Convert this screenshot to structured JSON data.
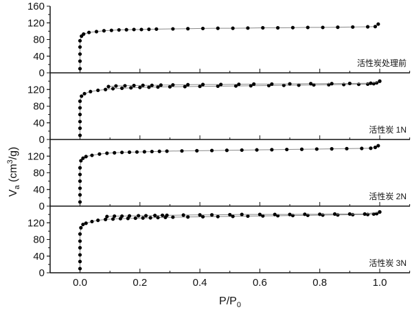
{
  "chart_data": {
    "type": "scatter",
    "xlabel": "P/P",
    "xlabel_sub": "0",
    "ylabel": "V",
    "ylabel_sub": "a",
    "ylabel_unit_pre": " (cm",
    "ylabel_sup": "3",
    "ylabel_unit_post": "/g)",
    "xlim": [
      -0.1,
      1.1
    ],
    "x_ticks": [
      "0.0",
      "0.2",
      "0.4",
      "0.6",
      "0.8",
      "1.0"
    ],
    "x_tick_values": [
      0,
      0.2,
      0.4,
      0.6,
      0.8,
      1.0
    ],
    "grid": false,
    "marker_color": "#000000",
    "line_color": "#888888",
    "panels": [
      {
        "label": "活性炭处理前",
        "ylim": [
          0,
          160
        ],
        "y_ticks": [
          "0",
          "40",
          "80",
          "120",
          "160"
        ],
        "y_tick_values": [
          0,
          40,
          80,
          120,
          160
        ],
        "series": [
          {
            "x": [
              0,
              0,
              0,
              0,
              0,
              0.005,
              0.012,
              0.03,
              0.055,
              0.08,
              0.105,
              0.13,
              0.155,
              0.18,
              0.205,
              0.23,
              0.255,
              0.31,
              0.36,
              0.41,
              0.46,
              0.51,
              0.56,
              0.61,
              0.66,
              0.71,
              0.76,
              0.81,
              0.86,
              0.91,
              0.96,
              0.985,
              0.995
            ],
            "y": [
              10,
              28,
              45,
              62,
              77,
              88,
              93,
              97,
              99,
              101,
              102,
              103,
              103.5,
              104,
              104,
              104.5,
              105,
              105.5,
              106,
              106.5,
              107,
              107,
              107.5,
              108,
              108,
              108.5,
              109,
              109,
              109.5,
              110,
              110.5,
              111,
              117
            ]
          }
        ]
      },
      {
        "label": "活性炭 1N",
        "ylim": [
          0,
          160
        ],
        "y_ticks": [
          "0",
          "40",
          "80",
          "120"
        ],
        "y_tick_values": [
          0,
          40,
          80,
          120
        ],
        "series": [
          {
            "x": [
              0,
              0,
              0,
              0,
              0,
              0,
              0.005,
              0.015,
              0.035,
              0.06,
              0.085,
              0.11,
              0.14,
              0.17,
              0.2,
              0.23,
              0.26,
              0.3,
              0.35,
              0.4,
              0.46,
              0.52,
              0.57,
              0.63,
              0.68,
              0.73,
              0.78,
              0.83,
              0.88,
              0.93,
              0.96,
              0.98,
              0.99,
              1.0
            ],
            "y": [
              10,
              27,
              43,
              60,
              76,
              92,
              104,
              110,
              115,
              118,
              120,
              122,
              123,
              124,
              125,
              125.5,
              126,
              126.5,
              127,
              127.5,
              128,
              128.5,
              129,
              129.5,
              130,
              130.5,
              131,
              131.5,
              132,
              132.5,
              133,
              134,
              136,
              140
            ]
          },
          {
            "x": [
              1.0,
              0.97,
              0.9,
              0.84,
              0.77,
              0.7,
              0.64,
              0.58,
              0.53,
              0.47,
              0.41,
              0.36,
              0.31,
              0.27,
              0.24,
              0.21,
              0.18,
              0.15,
              0.12,
              0.095
            ],
            "y": [
              140,
              135,
              134.5,
              134,
              134,
              133.5,
              133,
              133,
              132.5,
              132,
              132,
              131.5,
              131,
              130.5,
              130,
              130,
              129.5,
              129,
              128.5,
              127
            ]
          }
        ]
      },
      {
        "label": "活性炭 2N",
        "ylim": [
          0,
          160
        ],
        "y_ticks": [
          "0",
          "40",
          "80",
          "120"
        ],
        "y_tick_values": [
          0,
          40,
          80,
          120
        ],
        "series": [
          {
            "x": [
              0,
              0,
              0,
              0,
              0,
              0,
              0.003,
              0.01,
              0.02,
              0.04,
              0.065,
              0.09,
              0.115,
              0.14,
              0.165,
              0.19,
              0.215,
              0.24,
              0.265,
              0.29,
              0.34,
              0.39,
              0.44,
              0.49,
              0.54,
              0.59,
              0.64,
              0.69,
              0.74,
              0.79,
              0.84,
              0.89,
              0.94,
              0.97,
              0.985,
              0.995
            ],
            "y": [
              10,
              27,
              43,
              60,
              76,
              92,
              109,
              115,
              119,
              122,
              125,
              127,
              128,
              129,
              129.5,
              130,
              130.5,
              131,
              131.5,
              132,
              132.5,
              133,
              133.5,
              134,
              134.5,
              135,
              135.5,
              136,
              136.5,
              137,
              137.5,
              138,
              138.5,
              139,
              141,
              145
            ]
          }
        ]
      },
      {
        "label": "活性炭 3N",
        "ylim": [
          0,
          160
        ],
        "y_ticks": [
          "0",
          "40",
          "80",
          "120"
        ],
        "y_tick_values": [
          0,
          40,
          80,
          120
        ],
        "series": [
          {
            "x": [
              0,
              0,
              0,
              0,
              0,
              0,
              0.003,
              0.01,
              0.02,
              0.04,
              0.06,
              0.085,
              0.11,
              0.135,
              0.16,
              0.185,
              0.21,
              0.235,
              0.26,
              0.285,
              0.31,
              0.36,
              0.41,
              0.46,
              0.51,
              0.56,
              0.61,
              0.66,
              0.71,
              0.76,
              0.81,
              0.86,
              0.91,
              0.96,
              0.98,
              0.99,
              1.0
            ],
            "y": [
              10,
              27,
              43,
              60,
              76,
              93,
              108,
              116,
              119,
              123,
              126,
              128,
              129,
              130,
              130.5,
              131,
              131.5,
              132,
              132.5,
              133,
              133.5,
              134,
              134.5,
              135,
              135.5,
              136,
              136.5,
              137,
              137.5,
              138,
              138.5,
              139,
              139.5,
              140,
              141,
              142,
              146
            ]
          },
          {
            "x": [
              1.0,
              0.95,
              0.9,
              0.85,
              0.8,
              0.75,
              0.7,
              0.65,
              0.6,
              0.54,
              0.5,
              0.44,
              0.4,
              0.345,
              0.29,
              0.275,
              0.25,
              0.22,
              0.195,
              0.165,
              0.14,
              0.115,
              0.09
            ],
            "y": [
              146,
              141,
              141,
              141,
              140.5,
              140.5,
              140,
              140,
              140,
              140,
              139.5,
              139,
              139,
              138.5,
              138,
              138,
              137.5,
              137,
              137,
              136.5,
              136,
              136,
              135
            ]
          }
        ]
      }
    ]
  }
}
